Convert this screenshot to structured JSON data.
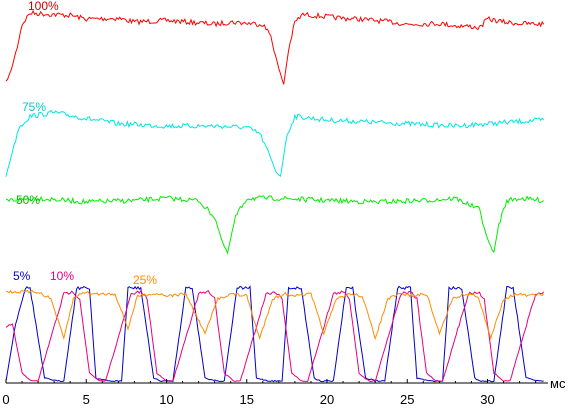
{
  "chart_data": {
    "type": "line",
    "xlabel": "мс",
    "xlim": [
      0,
      33.5
    ],
    "xticks": [
      "0",
      "5",
      "10",
      "15",
      "20",
      "25",
      "30"
    ],
    "grid": false,
    "series": [
      {
        "name": "100%",
        "color": "#ff0000",
        "x": [
          0,
          0.3,
          0.7,
          1.0,
          1.5,
          3,
          4,
          5,
          7,
          8,
          10,
          12,
          13,
          14,
          16,
          16.5,
          17.0,
          17.3,
          17.6,
          18.0,
          18.5,
          20,
          21,
          22,
          24,
          25,
          27,
          28,
          29,
          29.5,
          30,
          31,
          32,
          33.5
        ],
        "y": [
          0.08,
          0.22,
          0.55,
          0.85,
          1.0,
          0.98,
          0.97,
          0.92,
          0.93,
          0.88,
          0.9,
          0.87,
          0.85,
          0.88,
          0.85,
          0.7,
          0.25,
          0.05,
          0.5,
          0.88,
          0.98,
          0.95,
          0.93,
          0.92,
          0.88,
          0.85,
          0.86,
          0.83,
          0.82,
          0.8,
          0.92,
          0.88,
          0.86,
          0.85
        ]
      },
      {
        "name": "75%",
        "color": "#00e5e5",
        "x": [
          0,
          0.3,
          0.8,
          1.5,
          3,
          5,
          7,
          10,
          13,
          15,
          15.8,
          16.3,
          16.8,
          17.1,
          17.5,
          18,
          20,
          22,
          25,
          28,
          30,
          32,
          33.5
        ],
        "y": [
          0.05,
          0.3,
          0.7,
          0.85,
          0.9,
          0.82,
          0.75,
          0.72,
          0.72,
          0.7,
          0.62,
          0.4,
          0.12,
          0.05,
          0.6,
          0.85,
          0.8,
          0.78,
          0.75,
          0.72,
          0.75,
          0.78,
          0.8
        ]
      },
      {
        "name": "50%",
        "color": "#00ee00",
        "x": [
          0,
          2,
          5,
          8,
          10,
          12,
          13.0,
          13.5,
          13.8,
          14.3,
          15,
          17,
          20,
          23,
          26,
          28,
          29.5,
          30.0,
          30.4,
          30.7,
          31.2,
          32,
          33.5
        ],
        "y": [
          0.82,
          0.85,
          0.8,
          0.82,
          0.85,
          0.82,
          0.6,
          0.25,
          0.12,
          0.6,
          0.85,
          0.85,
          0.82,
          0.8,
          0.82,
          0.85,
          0.7,
          0.3,
          0.12,
          0.5,
          0.82,
          0.85,
          0.82
        ]
      },
      {
        "name": "5%",
        "color": "#0000cc",
        "x": [
          0,
          0.6,
          1.2,
          1.5,
          2.4,
          3.2,
          3.6,
          4.4,
          5.2,
          5.6,
          6.4,
          7.2,
          7.6,
          8.4,
          9.2,
          9.6,
          10.4,
          11.2,
          11.6,
          12.4,
          13.2,
          13.6,
          14.4,
          15.2,
          15.6,
          16.4,
          17.2,
          17.6,
          18.4,
          19.2,
          19.6,
          20.4,
          21.2,
          21.6,
          22.4,
          23.2,
          23.6,
          24.4,
          25.2,
          25.6,
          26.4,
          27.2,
          27.6,
          28.4,
          29.2,
          29.6,
          30.4,
          31.2,
          31.6,
          32.4,
          33.2,
          33.5
        ],
        "y": [
          0.02,
          0.6,
          0.96,
          0.96,
          0.05,
          0.02,
          0.02,
          0.96,
          0.96,
          0.05,
          0.02,
          0.02,
          0.96,
          0.96,
          0.05,
          0.02,
          0.02,
          0.96,
          0.96,
          0.05,
          0.02,
          0.02,
          0.96,
          0.96,
          0.05,
          0.02,
          0.02,
          0.96,
          0.96,
          0.05,
          0.02,
          0.02,
          0.96,
          0.96,
          0.05,
          0.02,
          0.02,
          0.96,
          0.96,
          0.05,
          0.02,
          0.02,
          0.96,
          0.96,
          0.05,
          0.02,
          0.02,
          0.96,
          0.96,
          0.05,
          0.02,
          0.02
        ]
      },
      {
        "name": "10%",
        "color": "#e8007c",
        "x": [
          0,
          0.4,
          1.0,
          1.6,
          2.0,
          3.6,
          4.2,
          4.6,
          5.2,
          5.8,
          6.2,
          7.8,
          8.4,
          8.8,
          9.4,
          10.0,
          10.4,
          12.0,
          12.6,
          13.0,
          13.6,
          14.2,
          14.6,
          16.2,
          16.8,
          17.2,
          17.8,
          18.4,
          18.8,
          20.4,
          21.0,
          21.4,
          22.0,
          22.6,
          23.0,
          24.6,
          25.2,
          25.6,
          26.2,
          26.8,
          27.2,
          28.8,
          29.4,
          29.8,
          30.4,
          31.0,
          31.4,
          33.0,
          33.5
        ],
        "y": [
          0.55,
          0.6,
          0.1,
          0.02,
          0.02,
          0.9,
          0.92,
          0.85,
          0.1,
          0.02,
          0.02,
          0.9,
          0.92,
          0.85,
          0.1,
          0.02,
          0.02,
          0.9,
          0.92,
          0.85,
          0.1,
          0.02,
          0.02,
          0.9,
          0.92,
          0.85,
          0.1,
          0.02,
          0.02,
          0.9,
          0.92,
          0.85,
          0.1,
          0.02,
          0.02,
          0.9,
          0.92,
          0.85,
          0.1,
          0.02,
          0.02,
          0.9,
          0.92,
          0.85,
          0.1,
          0.02,
          0.02,
          0.9,
          0.92
        ]
      },
      {
        "name": "25%",
        "color": "#ff8c00",
        "x": [
          0,
          2.0,
          2.8,
          3.6,
          4.2,
          4.8,
          5.4,
          6.8,
          7.6,
          8.2,
          9.0,
          9.6,
          10.2,
          11.2,
          12.4,
          13.2,
          14.0,
          15.0,
          15.8,
          16.6,
          17.4,
          18.2,
          19.0,
          19.8,
          20.6,
          21.4,
          22.2,
          23.0,
          23.8,
          24.6,
          25.4,
          26.2,
          27.0,
          27.8,
          28.6,
          29.4,
          30.2,
          31.0,
          31.8,
          32.6,
          33.5
        ],
        "y": [
          0.92,
          0.92,
          0.85,
          0.45,
          0.85,
          0.92,
          0.9,
          0.9,
          0.55,
          0.88,
          0.9,
          0.9,
          0.88,
          0.9,
          0.5,
          0.85,
          0.9,
          0.88,
          0.45,
          0.85,
          0.9,
          0.88,
          0.9,
          0.5,
          0.85,
          0.9,
          0.88,
          0.45,
          0.85,
          0.9,
          0.88,
          0.9,
          0.5,
          0.85,
          0.9,
          0.88,
          0.45,
          0.85,
          0.9,
          0.88,
          0.9
        ]
      }
    ]
  }
}
